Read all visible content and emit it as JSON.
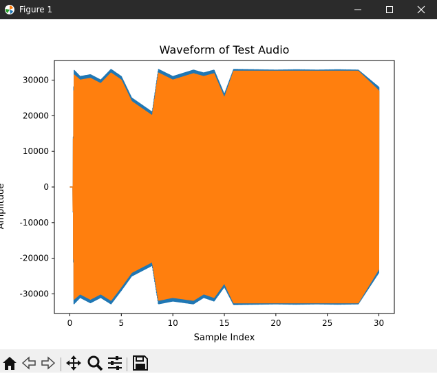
{
  "window": {
    "title": "Figure 1"
  },
  "toolbar": {
    "buttons": [
      {
        "name": "home-button",
        "icon": "home-icon"
      },
      {
        "name": "back-button",
        "icon": "arrow-left-icon"
      },
      {
        "name": "forward-button",
        "icon": "arrow-right-icon"
      },
      {
        "name": "pan-button",
        "icon": "move-icon"
      },
      {
        "name": "zoom-button",
        "icon": "magnifier-icon"
      },
      {
        "name": "configure-subplots-button",
        "icon": "sliders-icon"
      },
      {
        "name": "save-button",
        "icon": "floppy-disk-icon"
      }
    ]
  },
  "chart_data": {
    "type": "line",
    "title": "Waveform of Test Audio",
    "xlabel": "Sample Index",
    "ylabel": "Amplitude",
    "xlim": [
      -1.5,
      31.5
    ],
    "ylim": [
      -35500,
      35500
    ],
    "xticks": [
      0,
      5,
      10,
      15,
      20,
      25,
      30
    ],
    "yticks": [
      -30000,
      -20000,
      -10000,
      0,
      10000,
      20000,
      30000
    ],
    "grid": false,
    "series": [
      {
        "color": "#1f77b4",
        "x": [
          0.0,
          0.3,
          0.4,
          1,
          2,
          3,
          4,
          5,
          6,
          8,
          8.6,
          10,
          12,
          13,
          14,
          15,
          15.9,
          18,
          20,
          22,
          24,
          26,
          28,
          30
        ],
        "upper": [
          0,
          0,
          32800,
          31000,
          31500,
          30000,
          33000,
          31000,
          25000,
          21000,
          33000,
          31000,
          32800,
          32000,
          32800,
          26000,
          33000,
          32900,
          32800,
          32900,
          32800,
          32900,
          32800,
          28000
        ],
        "lower": [
          0,
          0,
          -32800,
          -31000,
          -32500,
          -31000,
          -32800,
          -29000,
          -25000,
          -22000,
          -32800,
          -32000,
          -32800,
          -31000,
          -32000,
          -28000,
          -33000,
          -32900,
          -32800,
          -32900,
          -32800,
          -32900,
          -32800,
          -24000
        ]
      },
      {
        "color": "#ff7f0e",
        "x": [
          0.0,
          0.3,
          0.4,
          1,
          2,
          3,
          4,
          5,
          6,
          8,
          8.6,
          10,
          12,
          13,
          14,
          15,
          15.9,
          18,
          20,
          22,
          24,
          26,
          28,
          30
        ],
        "upper": [
          0,
          0,
          31500,
          30000,
          30500,
          29000,
          32000,
          30000,
          24000,
          20000,
          32000,
          30000,
          31800,
          31000,
          31800,
          25000,
          32500,
          32500,
          32500,
          32500,
          32500,
          32500,
          32500,
          27000
        ],
        "lower": [
          0,
          0,
          -31500,
          -30000,
          -31500,
          -30000,
          -31800,
          -28000,
          -24000,
          -21000,
          -31800,
          -31000,
          -31800,
          -30000,
          -31000,
          -27000,
          -32500,
          -32500,
          -32500,
          -32500,
          -32500,
          -32500,
          -32500,
          -23000
        ]
      }
    ]
  }
}
